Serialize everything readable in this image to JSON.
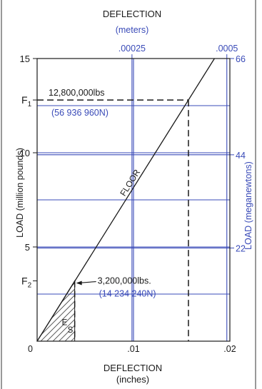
{
  "chart_data": {
    "type": "line",
    "title": "DEFLECTION",
    "top_axis": {
      "label": "(meters)",
      "ticks": [
        ".00025",
        ".0005"
      ],
      "values": [
        0.00025,
        0.0005
      ]
    },
    "bottom_axis": {
      "label": "DEFLECTION",
      "unit": "(inches)",
      "range": [
        0,
        0.02
      ],
      "ticks": [
        "0",
        ".01",
        ".02"
      ],
      "values": [
        0,
        0.01,
        0.02
      ]
    },
    "left_axis": {
      "label": "LOAD (million pounds)",
      "range": [
        0,
        15
      ],
      "ticks": [
        "5",
        "10",
        "15"
      ],
      "values": [
        5,
        10,
        15
      ]
    },
    "right_axis": {
      "label": "LOAD  (meganewtons)",
      "ticks": [
        "22",
        "44",
        "66"
      ],
      "values": [
        22,
        44,
        66
      ]
    },
    "series": [
      {
        "name": "FLOOR",
        "points": [
          [
            0,
            0
          ],
          [
            0.0184,
            15
          ]
        ]
      }
    ],
    "markers": {
      "F1": {
        "label": "F",
        "sub": "1",
        "load": 12.8,
        "deflection": 0.0157,
        "text_lbs": "12,800,000lbs",
        "text_n": "(56 936 960N)"
      },
      "F2": {
        "label": "F",
        "sub": "2",
        "load": 3.2,
        "deflection": 0.0039,
        "text_lbs": "3,200,000lbs.",
        "text_n": "(14 234 240N)"
      }
    },
    "hatched_region": {
      "label_top": "E",
      "label_bottom": "S",
      "deflection_end": 0.0039
    },
    "colors": {
      "primary": "#1a1a1a",
      "metric": "#3a4bb8",
      "grid": "#3a4bb8"
    }
  }
}
